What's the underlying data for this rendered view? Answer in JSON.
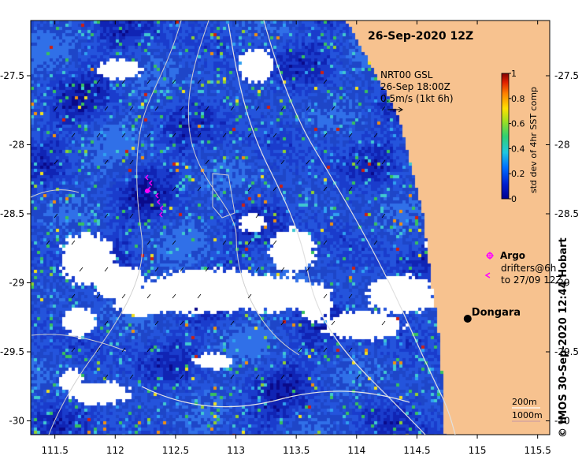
{
  "map": {
    "title": "26-Sep-2020 12Z",
    "x_ticks": [
      "111.5",
      "112",
      "112.5",
      "113",
      "113.5",
      "114",
      "114.5",
      "115",
      "115.5"
    ],
    "y_ticks": [
      "-27.5",
      "-28",
      "-28.5",
      "-29",
      "-29.5",
      "-30"
    ],
    "lon_range": [
      111.3,
      115.6
    ],
    "lat_range": [
      -30.1,
      -27.1
    ],
    "colors": {
      "land": "#f7c28f",
      "cloud": "#ffffff",
      "ocean_base": "#1f3fb8",
      "contour": "#c8c8c8",
      "argo": "#ff00ff"
    }
  },
  "velocity_legend": {
    "line1": "NRT00 GSL",
    "line2": "26-Sep 18:00Z",
    "line3": "0.5m/s (1kt 6h)"
  },
  "colorbar": {
    "label": "std dev of 4hr SST comp",
    "ticks": [
      "0",
      "0.2",
      "0.4",
      "0.6",
      "0.8",
      "1"
    ],
    "range": [
      0,
      1
    ]
  },
  "legend": {
    "argo_label": "Argo",
    "drifters_line1": "drifters@6h",
    "drifters_line2": "to 27/09 12Z"
  },
  "place": {
    "name": "Dongara",
    "lon": 114.92,
    "lat": -29.26
  },
  "bathymetry_legend": {
    "line1": "200m",
    "line2": "1000m"
  },
  "credit": "© IMOS 30-Sep-2020 12:44 Hobart"
}
